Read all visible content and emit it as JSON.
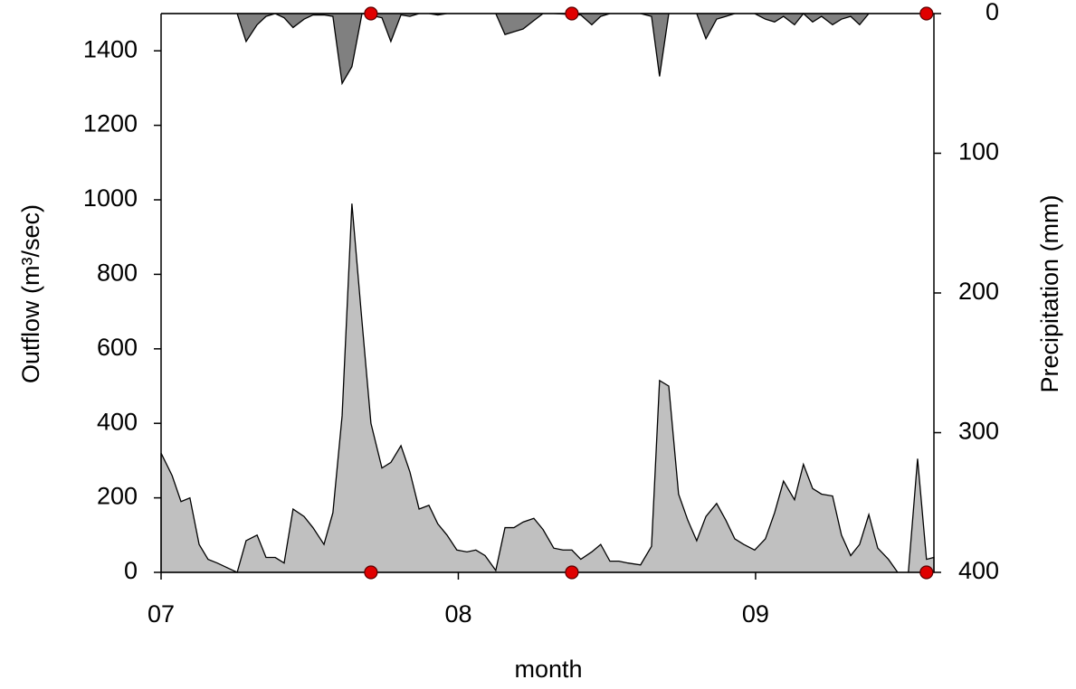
{
  "chart_data": {
    "type": "area",
    "x_label": "month",
    "y_label": "Outflow (m³/sec)",
    "y2_label": "Precipitation (mm)",
    "xlim": [
      7,
      9.6
    ],
    "xticks": [
      {
        "value": 7,
        "label": "07"
      },
      {
        "value": 8,
        "label": "08"
      },
      {
        "value": 9,
        "label": "09"
      }
    ],
    "ylim": [
      0,
      1500
    ],
    "yticks": [
      0,
      200,
      400,
      600,
      800,
      1000,
      1200,
      1400
    ],
    "y2lim": [
      400,
      0
    ],
    "y2ticks": [
      0,
      100,
      200,
      300,
      400
    ],
    "y2_inverted": true,
    "series": [
      {
        "axis": "y",
        "color": "#c0c0c0",
        "x": [
          7.0,
          7.037,
          7.067,
          7.097,
          7.128,
          7.158,
          7.189,
          7.256,
          7.286,
          7.323,
          7.353,
          7.384,
          7.414,
          7.444,
          7.481,
          7.511,
          7.548,
          7.578,
          7.609,
          7.642,
          7.673,
          7.706,
          7.743,
          7.773,
          7.807,
          7.837,
          7.868,
          7.901,
          7.931,
          7.962,
          7.995,
          8.029,
          8.059,
          8.09,
          8.126,
          8.157,
          8.187,
          8.218,
          8.254,
          8.285,
          8.321,
          8.352,
          8.382,
          8.412,
          8.449,
          8.479,
          8.51,
          8.54,
          8.571,
          8.613,
          8.65,
          8.677,
          8.708,
          8.741,
          8.772,
          8.802,
          8.833,
          8.869,
          8.9,
          8.93,
          8.96,
          8.997,
          9.033,
          9.064,
          9.094,
          9.131,
          9.161,
          9.192,
          9.222,
          9.259,
          9.289,
          9.32,
          9.35,
          9.381,
          9.411,
          9.447,
          9.478,
          9.514,
          9.545,
          9.575,
          9.6
        ],
        "values": [
          320,
          260,
          190,
          200,
          75,
          35,
          25,
          0,
          85,
          100,
          40,
          40,
          25,
          170,
          150,
          120,
          75,
          160,
          420,
          990,
          700,
          400,
          280,
          295,
          340,
          270,
          170,
          180,
          130,
          100,
          60,
          55,
          60,
          45,
          5,
          120,
          120,
          135,
          145,
          115,
          65,
          60,
          60,
          35,
          55,
          75,
          30,
          30,
          25,
          20,
          70,
          515,
          500,
          210,
          140,
          85,
          150,
          185,
          140,
          90,
          75,
          60,
          90,
          160,
          245,
          195,
          290,
          225,
          210,
          205,
          100,
          45,
          75,
          155,
          65,
          35,
          0,
          0,
          305,
          35,
          40
        ]
      },
      {
        "axis": "y2",
        "color": "#808080",
        "x": [
          7.0,
          7.256,
          7.286,
          7.323,
          7.353,
          7.384,
          7.414,
          7.444,
          7.481,
          7.511,
          7.548,
          7.578,
          7.609,
          7.642,
          7.676,
          7.743,
          7.773,
          7.807,
          7.837,
          7.868,
          7.901,
          7.931,
          7.962,
          8.09,
          8.126,
          8.157,
          8.187,
          8.218,
          8.254,
          8.285,
          8.321,
          8.412,
          8.449,
          8.479,
          8.51,
          8.613,
          8.65,
          8.677,
          8.708,
          8.741,
          8.802,
          8.833,
          8.869,
          8.9,
          8.93,
          8.997,
          9.033,
          9.064,
          9.094,
          9.131,
          9.161,
          9.192,
          9.222,
          9.259,
          9.289,
          9.32,
          9.35,
          9.381,
          9.6
        ],
        "values": [
          0,
          0,
          20,
          8,
          2,
          0,
          3,
          10,
          4,
          1,
          1,
          2,
          50,
          38,
          0,
          3,
          20,
          1,
          2,
          0,
          0,
          1,
          0,
          0,
          0,
          15,
          13,
          11,
          5,
          0,
          0,
          1,
          8,
          2,
          0,
          0,
          2,
          45,
          0,
          0,
          0,
          18,
          4,
          2,
          0,
          0,
          4,
          6,
          2,
          8,
          0,
          6,
          2,
          8,
          4,
          2,
          8,
          0,
          0
        ]
      }
    ],
    "markers": [
      {
        "axis": "y",
        "color": "#e00000",
        "x": [
          7.706,
          8.382,
          9.575
        ],
        "values": [
          0,
          0,
          0
        ]
      },
      {
        "axis": "y2",
        "color": "#e00000",
        "x": [
          7.706,
          8.382,
          9.575
        ],
        "values": [
          0,
          0,
          0
        ]
      }
    ]
  }
}
